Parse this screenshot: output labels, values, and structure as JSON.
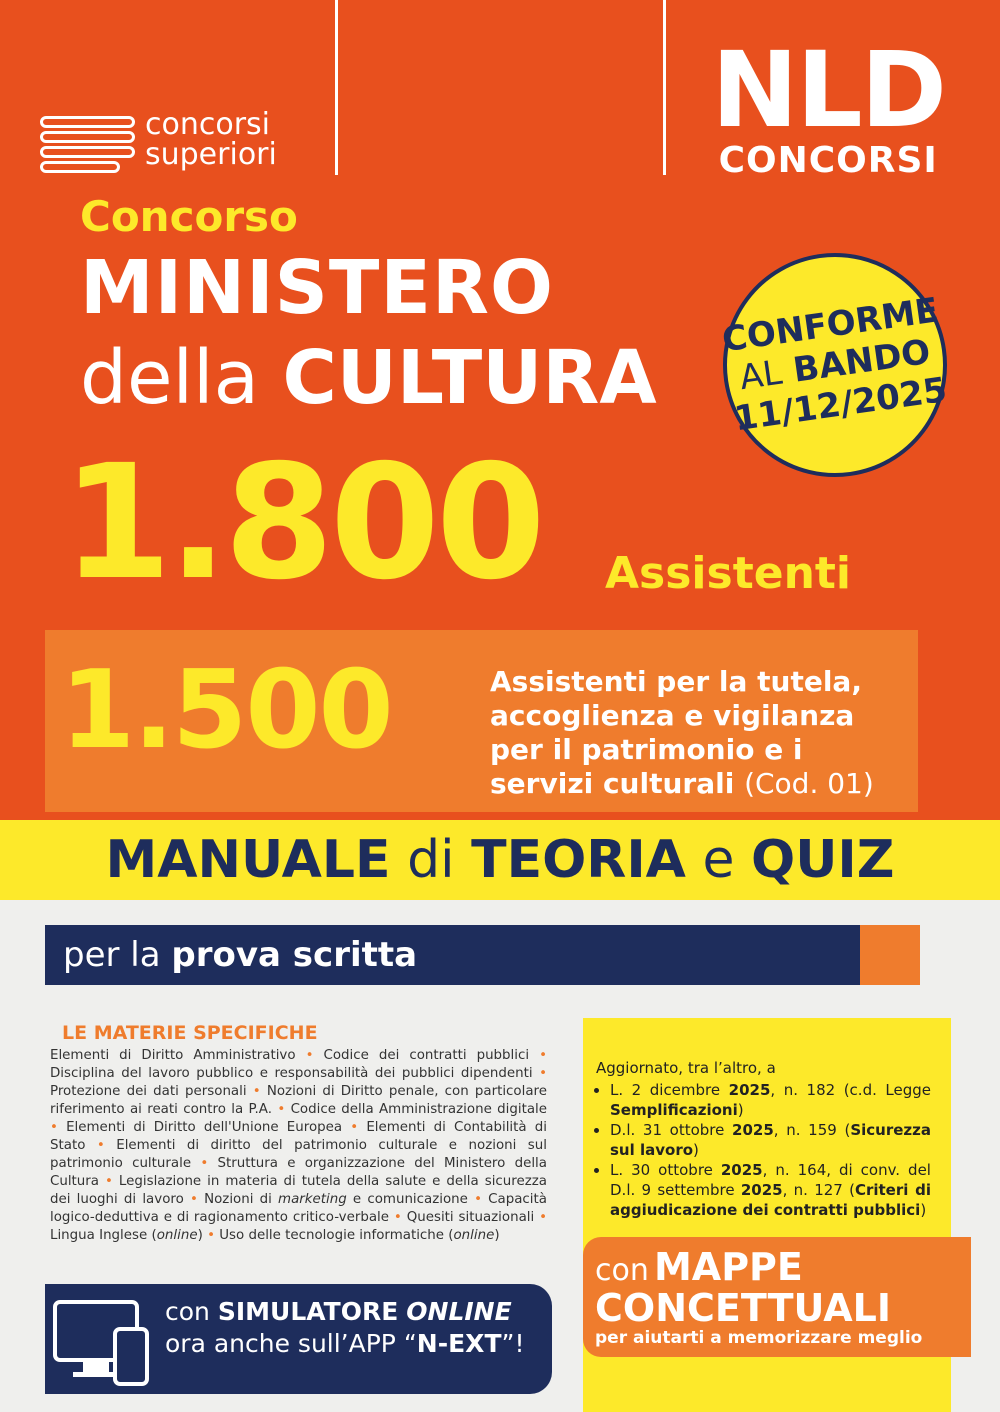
{
  "header": {
    "left_logo": [
      "concorsi",
      "superiori"
    ],
    "right_logo": {
      "mark": "NLD",
      "name": "CONCORSI"
    }
  },
  "title": {
    "pre": "Concorso",
    "line1": "MINISTERO",
    "line2_light": "della",
    "line2_bold": "CULTURA",
    "big_number": "1.800",
    "big_label": "Assistenti"
  },
  "badge": {
    "line1": "CONFORME",
    "line2_light": "AL",
    "line2_bold": "BANDO",
    "line3": "11/12/2025"
  },
  "profile": {
    "number": "1.500",
    "lines": [
      "Assistenti per la tutela,",
      "accoglienza e vigilanza",
      "per il patrimonio e i",
      "servizi culturali"
    ],
    "code": "(Cod. 01)"
  },
  "banner": {
    "parts": [
      "MANUALE",
      "di",
      "TEORIA",
      "e",
      "QUIZ"
    ]
  },
  "subtitle": {
    "light": "per la",
    "bold": "prova scritta"
  },
  "subjects": {
    "title": "LE MATERIE SPECIFICHE",
    "items": [
      [
        "Elementi di Diritto Amministrativo"
      ],
      [
        "Codice dei contratti pubblici"
      ],
      [
        "Disciplina del lavoro pubblico e responsabilità dei pubblici dipendenti"
      ],
      [
        "Protezione dei dati personali"
      ],
      [
        "Nozioni di Diritto penale, con particolare riferimento ai reati contro la P.A."
      ],
      [
        "Codice della Amministrazione digitale"
      ],
      [
        "Elementi di Diritto dell'Unione Europea"
      ],
      [
        "Elementi di Contabilità di Stato"
      ],
      [
        "Elementi di diritto del patrimonio culturale e nozioni sul patrimonio culturale"
      ],
      [
        "Struttura e organizzazione del Ministero della Cultura"
      ],
      [
        "Legislazione in materia di tutela della salute e della sicurezza dei luoghi di lavoro"
      ],
      [
        "Nozioni di ",
        "marketing",
        " e comunicazione"
      ],
      [
        "Capacità logico-deduttiva e di ragionamento critico-verbale"
      ],
      [
        "Quesiti situazionali"
      ],
      [
        "Lingua Inglese (",
        "online",
        ")"
      ],
      [
        "Uso delle tecnologie informatiche (",
        "online",
        ")"
      ]
    ]
  },
  "updates": {
    "intro": "Aggiornato, tra l’altro, a",
    "items": [
      [
        "L. 2 dicembre ",
        "2025",
        ", n. 182 (c.d. Legge ",
        "Semplificazioni",
        ")"
      ],
      [
        "D.l. 31 ottobre ",
        "2025",
        ", n. 159 (",
        "Sicurezza sul lavoro",
        ")"
      ],
      [
        "L. 30 ottobre ",
        "2025",
        ", n. 164, di conv. del D.l. 9 settembre ",
        "2025",
        ", n. 127 (",
        "Criteri di aggiudicazione dei contratti pubblici",
        ")"
      ]
    ]
  },
  "maps": {
    "pre": "con",
    "line1": "MAPPE",
    "line2": "CONCETTUALI",
    "sub": "per aiutarti a memorizzare meglio"
  },
  "simulator": {
    "pre": "con",
    "bold": "SIMULATORE",
    "italic": "ONLINE",
    "line2": [
      "ora anche sull’APP “",
      "N-EXT",
      "”!"
    ]
  }
}
